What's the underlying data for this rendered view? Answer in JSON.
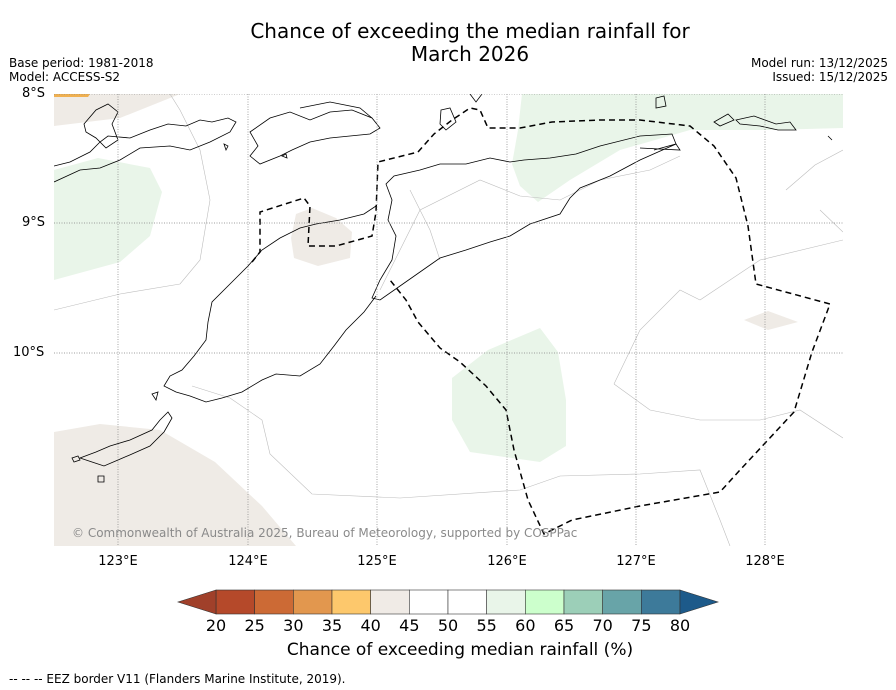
{
  "title_line1": "Chance of exceeding the median rainfall for",
  "title_line2": "March 2026",
  "meta_left": {
    "base_period": "Base period: 1981-2018",
    "model": "Model: ACCESS-S2"
  },
  "meta_right": {
    "model_run": "Model run: 13/12/2025",
    "issued": "Issued: 15/12/2025"
  },
  "lat_labels": [
    "8°S",
    "9°S",
    "10°S"
  ],
  "lon_labels": [
    "123°E",
    "124°E",
    "125°E",
    "126°E",
    "127°E",
    "128°E"
  ],
  "copyright": "© Commonwealth of Australia 2025, Bureau of Meteorology, supported by COSPPac",
  "colorbar": {
    "ticks": [
      "20",
      "25",
      "30",
      "35",
      "40",
      "45",
      "50",
      "55",
      "60",
      "65",
      "70",
      "75",
      "80"
    ],
    "colors": [
      "#b5492a",
      "#cc6a35",
      "#e2974e",
      "#fdc86c",
      "#f0ebe6",
      "#ffffff",
      "#ffffff",
      "#e9f5e9",
      "#ccffcc",
      "#9ccfb8",
      "#68a4a8",
      "#3d7a9a"
    ],
    "under_color": "#a0402a",
    "over_color": "#1d5a8a",
    "label": "Chance of exceeding median rainfall (%)"
  },
  "footer": "--  --  -- EEZ border V11 (Flanders Marine Institute, 2019).",
  "colors": {
    "brown_fill": "#efebe6",
    "green_fill": "#e9f5e9",
    "orange_fill": "#f0b050"
  }
}
